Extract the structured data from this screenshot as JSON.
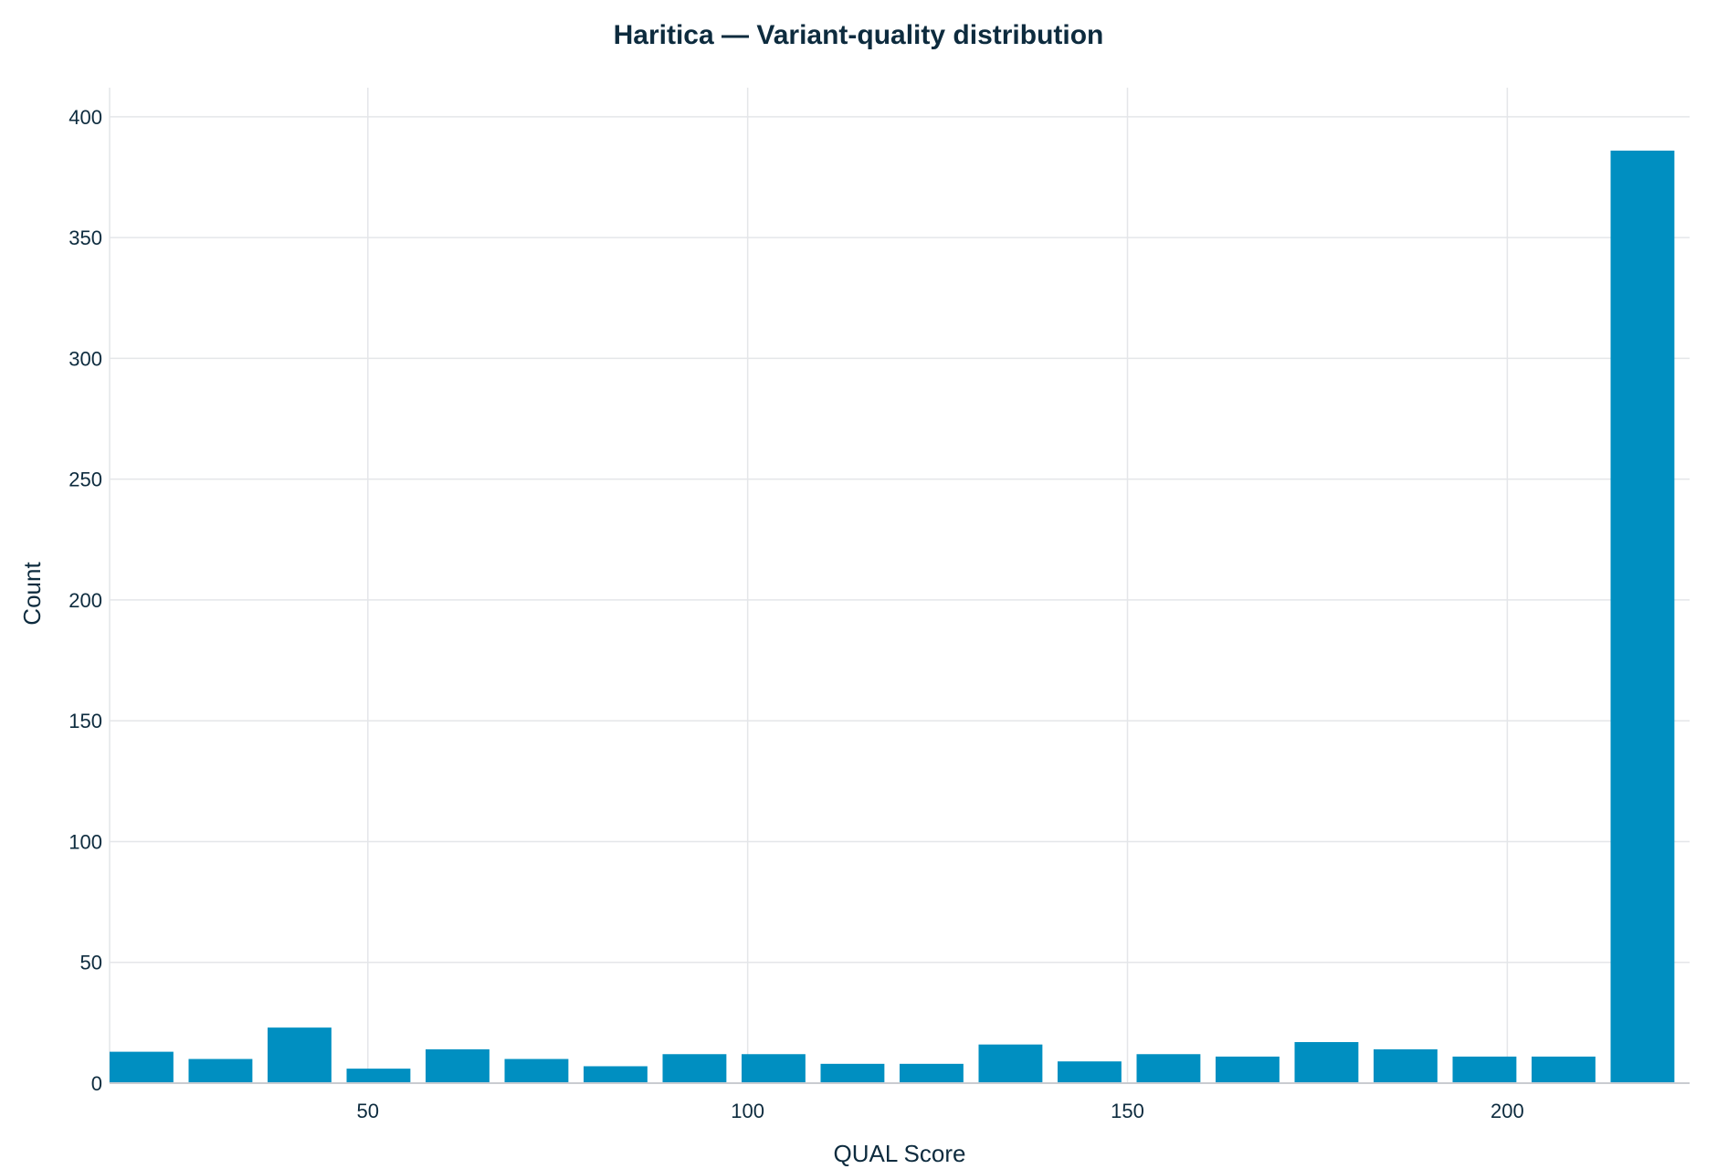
{
  "chart_data": {
    "type": "bar",
    "title": "Haritica — Variant-quality distribution",
    "xlabel": "QUAL Score",
    "ylabel": "Count",
    "xlim": [
      16,
      224
    ],
    "ylim": [
      0,
      406
    ],
    "x_ticks": [
      50,
      100,
      150,
      200
    ],
    "y_ticks": [
      0,
      50,
      100,
      150,
      200,
      250,
      300,
      350,
      400
    ],
    "grid": true,
    "bin_width": 10.4,
    "bins": [
      {
        "start": 16.0,
        "end": 24.4,
        "value": 13
      },
      {
        "start": 26.4,
        "end": 34.8,
        "value": 10
      },
      {
        "start": 36.8,
        "end": 45.2,
        "value": 23
      },
      {
        "start": 47.2,
        "end": 55.6,
        "value": 6
      },
      {
        "start": 57.6,
        "end": 66.0,
        "value": 14
      },
      {
        "start": 68.0,
        "end": 76.4,
        "value": 10
      },
      {
        "start": 78.4,
        "end": 86.8,
        "value": 7
      },
      {
        "start": 88.8,
        "end": 97.2,
        "value": 12
      },
      {
        "start": 99.2,
        "end": 107.6,
        "value": 12
      },
      {
        "start": 109.6,
        "end": 118.0,
        "value": 8
      },
      {
        "start": 120.0,
        "end": 128.4,
        "value": 8
      },
      {
        "start": 130.4,
        "end": 138.8,
        "value": 16
      },
      {
        "start": 140.8,
        "end": 149.2,
        "value": 9
      },
      {
        "start": 151.2,
        "end": 159.6,
        "value": 12
      },
      {
        "start": 161.6,
        "end": 170.0,
        "value": 11
      },
      {
        "start": 172.0,
        "end": 180.4,
        "value": 17
      },
      {
        "start": 182.4,
        "end": 190.8,
        "value": 14
      },
      {
        "start": 192.8,
        "end": 201.2,
        "value": 11
      },
      {
        "start": 203.2,
        "end": 211.6,
        "value": 11
      },
      {
        "start": 213.6,
        "end": 222.0,
        "value": 386
      }
    ],
    "colors": {
      "bar": "#008fc1",
      "grid": "#e4e6e9",
      "text": "#0d2b3e"
    }
  }
}
